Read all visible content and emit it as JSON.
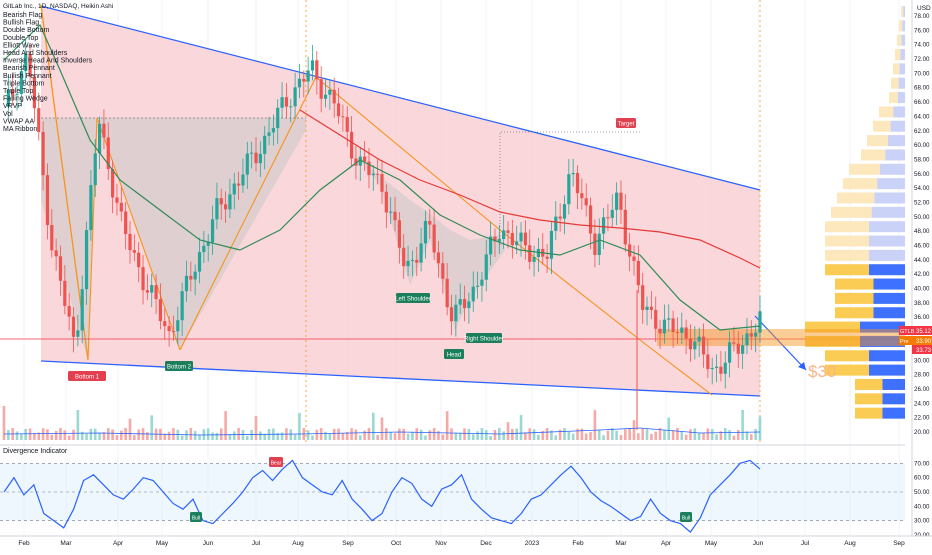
{
  "header": {
    "symbol": "GitLab Inc., 1D, NASDAQ, Heikin Ashi",
    "indicators": [
      "Bearish Flag",
      "Bullish Flag",
      "Double Bottom",
      "Double Top",
      "Elliott Wave",
      "Head And Shoulders",
      "Inverse Head And Shoulders",
      "Bearish Pennant",
      "Bullish Pennant",
      "Triple Bottom",
      "Triple Top",
      "Falling Wedge",
      "VRVP",
      "Vol",
      "VWAP AA",
      "MA Ribbon"
    ]
  },
  "price_axis": {
    "currency": "USD",
    "ticks": [
      "78.00",
      "76.00",
      "74.00",
      "72.00",
      "70.00",
      "68.00",
      "66.00",
      "64.00",
      "62.00",
      "60.00",
      "58.00",
      "56.00",
      "54.00",
      "52.00",
      "50.00",
      "48.00",
      "46.00",
      "44.00",
      "42.00",
      "40.00",
      "38.00",
      "36.00",
      "34.00",
      "32.00",
      "30.00",
      "28.00",
      "26.00",
      "24.00",
      "22.00",
      "20.00"
    ],
    "badges": [
      {
        "label": "GTLB",
        "value": "35.12",
        "color": "#f23645"
      },
      {
        "label": "Pre",
        "value": "33.90",
        "color": "#f57c00"
      },
      {
        "value": "33.73",
        "color": "#f23645"
      }
    ]
  },
  "osc_axis": {
    "ticks": [
      "70.00",
      "60.00",
      "50.00",
      "40.00",
      "30.00",
      "20.00"
    ]
  },
  "time_axis": {
    "labels": [
      "Feb",
      "Mar",
      "Apr",
      "May",
      "Jun",
      "Jul",
      "Aug",
      "Sep",
      "Oct",
      "Nov",
      "Dec",
      "2023",
      "Feb",
      "Mar",
      "Apr",
      "May",
      "Jun",
      "Jul",
      "Aug",
      "Sep"
    ]
  },
  "annotations": {
    "bottom1": "Bottom 1",
    "bottom2": "Bottom 2",
    "left_shoulder": "Left Shoulder",
    "head": "Head",
    "right_shoulder": "Right Shoulder",
    "target": "Target",
    "target_price": "$30",
    "osc_title": "Divergence Indicator",
    "bear": "Bear",
    "bull1": "Bull",
    "bull2": "Bull"
  },
  "colors": {
    "channel_fill": "#f8c9cf",
    "channel_line": "#2962ff",
    "wedge_line": "#f7931a",
    "ma_green": "#2e8b57",
    "ma_red": "#e53935",
    "up": "#26a69a",
    "down": "#ef5350",
    "osc_line": "#2962ff",
    "label_green": "#1b7f5d",
    "label_red": "#e04050"
  },
  "chart_data": {
    "type": "candlestick",
    "title": "GitLab Inc., 1D, NASDAQ, Heikin Ashi",
    "ylabel": "USD",
    "ylim": [
      20,
      80
    ],
    "x_labels": [
      "Feb",
      "Mar",
      "Apr",
      "May",
      "Jun",
      "Jul",
      "Aug",
      "Sep",
      "Oct",
      "Nov",
      "Dec",
      "2023",
      "Feb",
      "Mar",
      "Apr",
      "May",
      "Jun"
    ],
    "close_path": [
      {
        "x": "Feb",
        "y": 64
      },
      {
        "x": "Feb",
        "y": 72
      },
      {
        "x": "Mar",
        "y": 46
      },
      {
        "x": "Mar",
        "y": 31
      },
      {
        "x": "Apr",
        "y": 63
      },
      {
        "x": "Apr",
        "y": 48
      },
      {
        "x": "May",
        "y": 40
      },
      {
        "x": "May",
        "y": 33
      },
      {
        "x": "Jun",
        "y": 42
      },
      {
        "x": "Jun",
        "y": 50
      },
      {
        "x": "Jul",
        "y": 55
      },
      {
        "x": "Jul",
        "y": 60
      },
      {
        "x": "Aug",
        "y": 66
      },
      {
        "x": "Aug",
        "y": 70
      },
      {
        "x": "Sep",
        "y": 65
      },
      {
        "x": "Sep",
        "y": 57
      },
      {
        "x": "Oct",
        "y": 54
      },
      {
        "x": "Oct",
        "y": 42
      },
      {
        "x": "Nov",
        "y": 48
      },
      {
        "x": "Nov",
        "y": 35
      },
      {
        "x": "Dec",
        "y": 40
      },
      {
        "x": "Dec",
        "y": 48
      },
      {
        "x": "2023",
        "y": 45
      },
      {
        "x": "2023",
        "y": 44
      },
      {
        "x": "Feb",
        "y": 56
      },
      {
        "x": "Feb",
        "y": 46
      },
      {
        "x": "Mar",
        "y": 52
      },
      {
        "x": "Mar",
        "y": 37
      },
      {
        "x": "Apr",
        "y": 34
      },
      {
        "x": "Apr",
        "y": 33
      },
      {
        "x": "May",
        "y": 28
      },
      {
        "x": "May",
        "y": 31
      },
      {
        "x": "Jun",
        "y": 35
      }
    ],
    "pattern_points": [
      {
        "name": "Bottom 1",
        "y": 31
      },
      {
        "name": "Bottom 2",
        "y": 32
      },
      {
        "name": "Left Shoulder",
        "y": 42
      },
      {
        "name": "Head",
        "y": 33
      },
      {
        "name": "Right Shoulder",
        "y": 35
      },
      {
        "name": "Target",
        "y": 63
      }
    ],
    "target_price": 30,
    "oscillator": {
      "name": "Divergence Indicator",
      "ylim": [
        20,
        80
      ],
      "levels": [
        70,
        50,
        30
      ],
      "values": [
        50,
        60,
        48,
        55,
        35,
        30,
        25,
        38,
        58,
        62,
        55,
        48,
        45,
        52,
        60,
        58,
        50,
        42,
        38,
        45,
        30,
        28,
        35,
        42,
        50,
        60,
        65,
        58,
        66,
        72,
        60,
        55,
        50,
        48,
        58,
        45,
        38,
        30,
        35,
        50,
        60,
        56,
        45,
        40,
        52,
        55,
        62,
        45,
        38,
        32,
        30,
        28,
        35,
        45,
        48,
        55,
        62,
        68,
        60,
        50,
        44,
        40,
        35,
        30,
        33,
        45,
        35,
        30,
        28,
        22,
        32,
        48,
        55,
        62,
        70,
        72,
        66
      ]
    }
  }
}
